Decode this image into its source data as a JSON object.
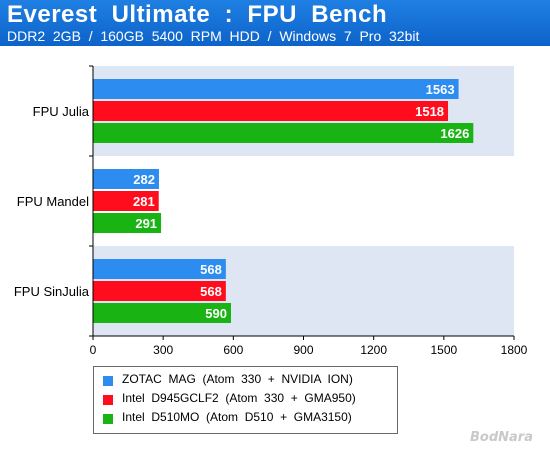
{
  "header": {
    "title": "Everest  Ultimate  :  FPU  Bench",
    "subtitle": "DDR2  2GB  /  160GB  5400  RPM  HDD  /  Windows  7  Pro  32bit"
  },
  "watermark": "BodNara",
  "colors": {
    "header": "#1278dd",
    "band": "#dde6f2",
    "series": [
      "#2d8cf0",
      "#ff0d1c",
      "#19b414"
    ]
  },
  "chart_data": {
    "type": "bar",
    "orientation": "horizontal",
    "categories": [
      "FPU  Julia",
      "FPU  Mandel",
      "FPU  SinJulia"
    ],
    "series": [
      {
        "name": "ZOTAC  MAG  (Atom  330  +  NVIDIA  ION)",
        "values": [
          1563,
          282,
          568
        ]
      },
      {
        "name": "Intel  D945GCLF2  (Atom  330  +  GMA950)",
        "values": [
          1518,
          281,
          568
        ]
      },
      {
        "name": "Intel  D510MO  (Atom  D510  +  GMA3150)",
        "values": [
          1626,
          291,
          590
        ]
      }
    ],
    "x_ticks": [
      "0",
      "300",
      "600",
      "900",
      "1200",
      "1500",
      "1800"
    ],
    "xlim": [
      0,
      1800
    ],
    "grid": false,
    "legend_position": "bottom-left",
    "show_data_labels": true
  }
}
